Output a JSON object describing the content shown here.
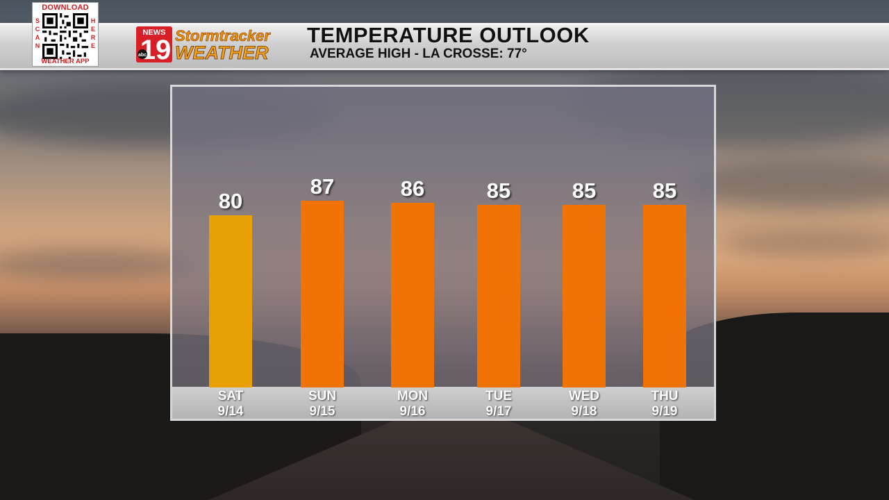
{
  "header": {
    "qr_top": "DOWNLOAD",
    "qr_left": "SCAN",
    "qr_right": "HERE",
    "qr_bottom": "WEATHER APP",
    "logo_news": "NEWS",
    "logo_number": "19",
    "logo_network": "abc",
    "logo_line1": "Stormtracker",
    "logo_line2": "WEATHER",
    "title": "TEMPERATURE OUTLOOK",
    "subtitle": "AVERAGE HIGH - LA CROSSE: 77°"
  },
  "colors": {
    "bar_warm": "#e8a007",
    "bar_hot": "#ef7405",
    "logo_red": "#d61f26",
    "logo_orange": "#f29100"
  },
  "chart_data": {
    "type": "bar",
    "categories": [
      "SAT",
      "SUN",
      "MON",
      "TUE",
      "WED",
      "THU"
    ],
    "dates": [
      "9/14",
      "9/15",
      "9/16",
      "9/17",
      "9/18",
      "9/19"
    ],
    "values": [
      80,
      87,
      86,
      85,
      85,
      85
    ],
    "value_labels": [
      "80",
      "87",
      "86",
      "85",
      "85",
      "85"
    ],
    "title": "TEMPERATURE OUTLOOK",
    "xlabel": "",
    "ylabel": "",
    "grid": false
  }
}
